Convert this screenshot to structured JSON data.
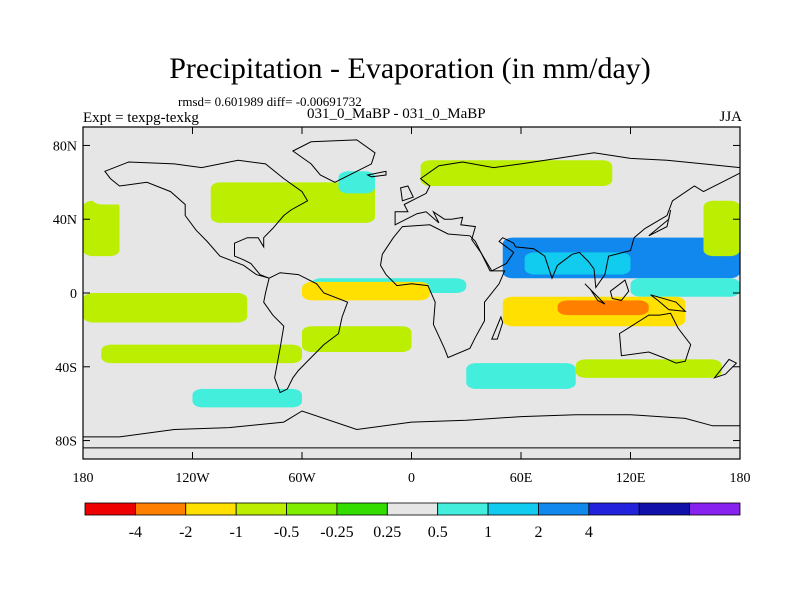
{
  "chart_data": {
    "type": "map-contour",
    "title": "Precipitation - Evaporation (in mm/day)",
    "stats_text": "rmsd= 0.601989  diff= -0.00691732",
    "left_label": "Expt = texpg-texkg",
    "center_label": "031_0_MaBP - 031_0_MaBP",
    "right_label": "JJA",
    "x_range": [
      -180,
      180
    ],
    "y_range": [
      -90,
      90
    ],
    "x_ticks": [
      {
        "value": -180,
        "label": "180"
      },
      {
        "value": -120,
        "label": "120W"
      },
      {
        "value": -60,
        "label": "60W"
      },
      {
        "value": 0,
        "label": "0"
      },
      {
        "value": 60,
        "label": "60E"
      },
      {
        "value": 120,
        "label": "120E"
      },
      {
        "value": 180,
        "label": "180"
      }
    ],
    "y_ticks": [
      {
        "value": 80,
        "label": "80N"
      },
      {
        "value": 40,
        "label": "40N"
      },
      {
        "value": 0,
        "label": "0"
      },
      {
        "value": -40,
        "label": "40S"
      },
      {
        "value": -80,
        "label": "80S"
      }
    ],
    "colorbar": {
      "colors": [
        "#ee0000",
        "#ff7f00",
        "#ffe000",
        "#bbee00",
        "#7fee00",
        "#33dd00",
        "#e6e6e6",
        "#44eedd",
        "#11ccee",
        "#1188ee",
        "#2222dd",
        "#1111aa",
        "#8822ee"
      ],
      "labels": [
        "-4",
        "-2",
        "-1",
        "-0.5",
        "-0.25",
        "0.25",
        "0.5",
        "1",
        "2",
        "4"
      ]
    },
    "colors": {
      "neutral": "#e6e6e6",
      "coast": "#000000"
    },
    "regions": [
      {
        "level": "2",
        "lon": [
          50,
          180
        ],
        "lat": [
          8,
          30
        ]
      },
      {
        "level": "1",
        "lon": [
          62,
          120
        ],
        "lat": [
          10,
          22
        ]
      },
      {
        "level": "0.5",
        "lon": [
          120,
          180
        ],
        "lat": [
          -2,
          8
        ]
      },
      {
        "level": "0.5",
        "lon": [
          -55,
          30
        ],
        "lat": [
          0,
          8
        ]
      },
      {
        "level": "-4",
        "lon": [
          -35,
          0
        ],
        "lat": [
          -2,
          4
        ]
      },
      {
        "level": "-1",
        "lon": [
          -60,
          10
        ],
        "lat": [
          -4,
          6
        ]
      },
      {
        "level": "-1",
        "lon": [
          50,
          150
        ],
        "lat": [
          -18,
          -2
        ]
      },
      {
        "level": "-2",
        "lon": [
          80,
          130
        ],
        "lat": [
          -12,
          -4
        ]
      },
      {
        "level": "-1",
        "lon": [
          -165,
          -100
        ],
        "lat": [
          -10,
          -2
        ]
      },
      {
        "level": "-2",
        "lon": [
          -170,
          -110
        ],
        "lat": [
          -7,
          -3
        ]
      },
      {
        "level": "-0.5",
        "lon": [
          -180,
          -90
        ],
        "lat": [
          -16,
          0
        ]
      },
      {
        "level": "-0.5",
        "lon": [
          -180,
          -160
        ],
        "lat": [
          20,
          50
        ]
      },
      {
        "level": "-0.5",
        "lon": [
          -110,
          -20
        ],
        "lat": [
          38,
          60
        ]
      },
      {
        "level": "-0.5",
        "lon": [
          5,
          110
        ],
        "lat": [
          58,
          72
        ]
      },
      {
        "level": "-0.5",
        "lon": [
          160,
          180
        ],
        "lat": [
          20,
          50
        ]
      },
      {
        "level": "0.25",
        "lon": [
          -175,
          -130
        ],
        "lat": [
          48,
          60
        ]
      },
      {
        "level": "0.5",
        "lon": [
          -40,
          -20
        ],
        "lat": [
          54,
          66
        ]
      },
      {
        "level": "-0.5",
        "lon": [
          -170,
          -60
        ],
        "lat": [
          -38,
          -28
        ]
      },
      {
        "level": "0.5",
        "lon": [
          30,
          90
        ],
        "lat": [
          -52,
          -38
        ]
      },
      {
        "level": "0.5",
        "lon": [
          -120,
          -60
        ],
        "lat": [
          -62,
          -52
        ]
      },
      {
        "level": "-0.5",
        "lon": [
          -60,
          0
        ],
        "lat": [
          -32,
          -18
        ]
      },
      {
        "level": "0.25",
        "lon": [
          0,
          170
        ],
        "lat": [
          -70,
          -58
        ]
      },
      {
        "level": "-0.5",
        "lon": [
          90,
          170
        ],
        "lat": [
          -46,
          -36
        ]
      }
    ],
    "coastlines": [
      {
        "name": "north-america",
        "points": [
          [
            -168,
            66
          ],
          [
            -155,
            71
          ],
          [
            -130,
            70
          ],
          [
            -115,
            68
          ],
          [
            -95,
            72
          ],
          [
            -80,
            70
          ],
          [
            -70,
            62
          ],
          [
            -60,
            55
          ],
          [
            -57,
            50
          ],
          [
            -66,
            45
          ],
          [
            -70,
            42
          ],
          [
            -76,
            35
          ],
          [
            -81,
            30
          ],
          [
            -81,
            25
          ],
          [
            -84,
            30
          ],
          [
            -90,
            30
          ],
          [
            -97,
            27
          ],
          [
            -97,
            20
          ],
          [
            -92,
            18
          ],
          [
            -88,
            16
          ],
          [
            -83,
            10
          ],
          [
            -78,
            8
          ],
          [
            -85,
            10
          ],
          [
            -92,
            15
          ],
          [
            -105,
            20
          ],
          [
            -112,
            28
          ],
          [
            -118,
            34
          ],
          [
            -124,
            42
          ],
          [
            -124,
            48
          ],
          [
            -132,
            55
          ],
          [
            -145,
            60
          ],
          [
            -160,
            58
          ],
          [
            -165,
            62
          ]
        ]
      },
      {
        "name": "greenland",
        "points": [
          [
            -55,
            82
          ],
          [
            -30,
            83
          ],
          [
            -20,
            76
          ],
          [
            -22,
            70
          ],
          [
            -42,
            60
          ],
          [
            -50,
            64
          ],
          [
            -55,
            70
          ],
          [
            -65,
            77
          ]
        ]
      },
      {
        "name": "south-america",
        "points": [
          [
            -78,
            8
          ],
          [
            -72,
            11
          ],
          [
            -62,
            10
          ],
          [
            -52,
            5
          ],
          [
            -48,
            0
          ],
          [
            -35,
            -5
          ],
          [
            -38,
            -13
          ],
          [
            -40,
            -22
          ],
          [
            -48,
            -28
          ],
          [
            -58,
            -38
          ],
          [
            -62,
            -42
          ],
          [
            -65,
            -46
          ],
          [
            -68,
            -52
          ],
          [
            -72,
            -54
          ],
          [
            -75,
            -46
          ],
          [
            -72,
            -30
          ],
          [
            -70,
            -18
          ],
          [
            -76,
            -12
          ],
          [
            -81,
            -5
          ],
          [
            -80,
            0
          ]
        ]
      },
      {
        "name": "africa",
        "points": [
          [
            -17,
            15
          ],
          [
            -16,
            21
          ],
          [
            -10,
            30
          ],
          [
            -5,
            36
          ],
          [
            10,
            37
          ],
          [
            20,
            32
          ],
          [
            32,
            31
          ],
          [
            35,
            28
          ],
          [
            43,
            12
          ],
          [
            51,
            12
          ],
          [
            48,
            5
          ],
          [
            40,
            -5
          ],
          [
            40,
            -15
          ],
          [
            35,
            -24
          ],
          [
            32,
            -30
          ],
          [
            20,
            -35
          ],
          [
            18,
            -30
          ],
          [
            12,
            -17
          ],
          [
            13,
            -5
          ],
          [
            9,
            4
          ],
          [
            0,
            5
          ],
          [
            -8,
            4
          ],
          [
            -14,
            10
          ]
        ]
      },
      {
        "name": "eurasia",
        "points": [
          [
            -9,
            37
          ],
          [
            -9,
            44
          ],
          [
            -2,
            44
          ],
          [
            -4,
            48
          ],
          [
            2,
            51
          ],
          [
            8,
            54
          ],
          [
            10,
            58
          ],
          [
            5,
            62
          ],
          [
            15,
            69
          ],
          [
            28,
            71
          ],
          [
            45,
            68
          ],
          [
            60,
            70
          ],
          [
            80,
            73
          ],
          [
            100,
            76
          ],
          [
            120,
            73
          ],
          [
            140,
            72
          ],
          [
            160,
            70
          ],
          [
            180,
            68
          ],
          [
            180,
            65
          ],
          [
            170,
            60
          ],
          [
            160,
            55
          ],
          [
            155,
            58
          ],
          [
            143,
            50
          ],
          [
            140,
            42
          ],
          [
            128,
            35
          ],
          [
            122,
            30
          ],
          [
            120,
            23
          ],
          [
            108,
            20
          ],
          [
            106,
            10
          ],
          [
            101,
            3
          ],
          [
            100,
            13
          ],
          [
            97,
            17
          ],
          [
            92,
            22
          ],
          [
            88,
            21
          ],
          [
            80,
            15
          ],
          [
            77,
            8
          ],
          [
            73,
            20
          ],
          [
            67,
            24
          ],
          [
            57,
            25
          ],
          [
            56,
            27
          ],
          [
            50,
            30
          ],
          [
            48,
            28
          ],
          [
            56,
            22
          ],
          [
            52,
            16
          ],
          [
            44,
            12
          ],
          [
            38,
            22
          ],
          [
            33,
            29
          ],
          [
            35,
            36
          ],
          [
            27,
            37
          ],
          [
            28,
            41
          ],
          [
            22,
            40
          ],
          [
            18,
            40
          ],
          [
            12,
            44
          ],
          [
            15,
            38
          ],
          [
            8,
            44
          ],
          [
            3,
            43
          ]
        ]
      },
      {
        "name": "australia",
        "points": [
          [
            114,
            -22
          ],
          [
            115,
            -34
          ],
          [
            130,
            -32
          ],
          [
            138,
            -35
          ],
          [
            145,
            -38
          ],
          [
            150,
            -37
          ],
          [
            153,
            -28
          ],
          [
            146,
            -19
          ],
          [
            142,
            -11
          ],
          [
            136,
            -12
          ],
          [
            130,
            -12
          ],
          [
            122,
            -17
          ]
        ]
      },
      {
        "name": "antarctica",
        "points": [
          [
            -180,
            -84
          ],
          [
            180,
            -84
          ],
          [
            180,
            -72
          ],
          [
            165,
            -72
          ],
          [
            150,
            -68
          ],
          [
            120,
            -66
          ],
          [
            90,
            -66
          ],
          [
            60,
            -67
          ],
          [
            30,
            -69
          ],
          [
            0,
            -70
          ],
          [
            -30,
            -74
          ],
          [
            -60,
            -64
          ],
          [
            -70,
            -70
          ],
          [
            -100,
            -73
          ],
          [
            -130,
            -74
          ],
          [
            -160,
            -78
          ],
          [
            -180,
            -78
          ]
        ]
      },
      {
        "name": "madagascar",
        "points": [
          [
            44,
            -25
          ],
          [
            49,
            -13
          ],
          [
            50,
            -16
          ],
          [
            47,
            -25
          ]
        ]
      },
      {
        "name": "uk",
        "points": [
          [
            -5,
            50
          ],
          [
            1,
            52
          ],
          [
            -2,
            58
          ],
          [
            -6,
            57
          ]
        ]
      },
      {
        "name": "borneo",
        "points": [
          [
            109,
            1
          ],
          [
            117,
            7
          ],
          [
            119,
            1
          ],
          [
            115,
            -4
          ],
          [
            110,
            -3
          ]
        ]
      },
      {
        "name": "sumatra",
        "points": [
          [
            95,
            5
          ],
          [
            106,
            -6
          ],
          [
            102,
            -4
          ],
          [
            98,
            2
          ]
        ]
      },
      {
        "name": "japan",
        "points": [
          [
            130,
            31
          ],
          [
            141,
            40
          ],
          [
            142,
            45
          ],
          [
            140,
            36
          ]
        ]
      },
      {
        "name": "new-guinea",
        "points": [
          [
            131,
            -1
          ],
          [
            145,
            -5
          ],
          [
            150,
            -10
          ],
          [
            141,
            -9
          ],
          [
            135,
            -4
          ]
        ]
      },
      {
        "name": "new-zealand",
        "points": [
          [
            166,
            -46
          ],
          [
            174,
            -36
          ],
          [
            178,
            -38
          ],
          [
            172,
            -44
          ]
        ]
      },
      {
        "name": "iceland",
        "points": [
          [
            -24,
            64
          ],
          [
            -14,
            66
          ],
          [
            -14,
            64
          ],
          [
            -22,
            63
          ]
        ]
      }
    ]
  }
}
